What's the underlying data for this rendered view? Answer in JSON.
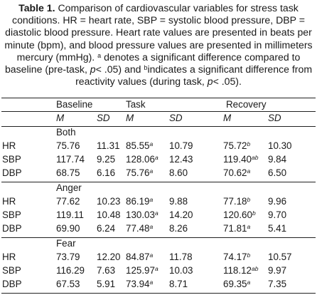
{
  "caption": {
    "table_label": "Table 1.",
    "part1": " Comparison of cardiovascular variables for stress task conditions. HR = heart rate, SBP = systolic blood pressure, DBP = diastolic blood pressure. Heart rate values are presented in beats per minute (bpm), and blood pressure values are presented in millimeters mercury (mmHg). ",
    "sup_a": "a",
    "part2": " denotes a significant difference compared to baseline (pre-task, ",
    "p1": "p",
    "part3": "< .05) and ",
    "sup_b": "b",
    "part4": "indicates a significant difference from reactivity values (during task, ",
    "p2": "p",
    "part5": "< .05)."
  },
  "table": {
    "groups": [
      "Baseline",
      "Task",
      "Recovery"
    ],
    "subheads": [
      "M",
      "SD",
      "M",
      "SD",
      "M",
      "SD"
    ],
    "sections": [
      {
        "label": "Both",
        "rows": [
          {
            "name": "HR",
            "cells": [
              {
                "v": "75.76"
              },
              {
                "v": "11.31"
              },
              {
                "v": "85.55",
                "s": "a"
              },
              {
                "v": "10.79"
              },
              {
                "v": "75.72",
                "s": "b"
              },
              {
                "v": "10.30"
              }
            ]
          },
          {
            "name": "SBP",
            "cells": [
              {
                "v": "117.74"
              },
              {
                "v": "9.25"
              },
              {
                "v": "128.06",
                "s": "a"
              },
              {
                "v": "12.43"
              },
              {
                "v": "119.40",
                "s": "ab"
              },
              {
                "v": "9.84"
              }
            ]
          },
          {
            "name": "DBP",
            "cells": [
              {
                "v": "68.75"
              },
              {
                "v": "6.16"
              },
              {
                "v": "75.76",
                "s": "a"
              },
              {
                "v": "8.60"
              },
              {
                "v": "70.62",
                "s": "a"
              },
              {
                "v": "6.50"
              }
            ]
          }
        ]
      },
      {
        "label": "Anger",
        "rows": [
          {
            "name": "HR",
            "cells": [
              {
                "v": "77.62"
              },
              {
                "v": "10.23"
              },
              {
                "v": "86.19",
                "s": "a"
              },
              {
                "v": "9.88"
              },
              {
                "v": "77.18",
                "s": "b"
              },
              {
                "v": "9.96"
              }
            ]
          },
          {
            "name": "SBP",
            "cells": [
              {
                "v": "119.11"
              },
              {
                "v": "10.48"
              },
              {
                "v": "130.03",
                "s": "a"
              },
              {
                "v": "14.20"
              },
              {
                "v": "120.60",
                "s": "b"
              },
              {
                "v": "9.70"
              }
            ]
          },
          {
            "name": "DBP",
            "cells": [
              {
                "v": "69.90"
              },
              {
                "v": "6.24"
              },
              {
                "v": "77.48",
                "s": "a"
              },
              {
                "v": "8.26"
              },
              {
                "v": "71.81",
                "s": "a"
              },
              {
                "v": "5.41"
              }
            ]
          }
        ]
      },
      {
        "label": "Fear",
        "rows": [
          {
            "name": "HR",
            "cells": [
              {
                "v": "73.79"
              },
              {
                "v": "12.20"
              },
              {
                "v": "84.87",
                "s": "a"
              },
              {
                "v": "11.78"
              },
              {
                "v": "74.17",
                "s": "b"
              },
              {
                "v": "10.57"
              }
            ]
          },
          {
            "name": "SBP",
            "cells": [
              {
                "v": "116.29"
              },
              {
                "v": "7.63"
              },
              {
                "v": "125.97",
                "s": "a"
              },
              {
                "v": "10.03"
              },
              {
                "v": "118.12",
                "s": "ab"
              },
              {
                "v": "9.97"
              }
            ]
          },
          {
            "name": "DBP",
            "cells": [
              {
                "v": "67.53"
              },
              {
                "v": "5.91"
              },
              {
                "v": "73.94",
                "s": "a"
              },
              {
                "v": "8.71"
              },
              {
                "v": "69.35",
                "s": "a"
              },
              {
                "v": "7.35"
              }
            ]
          }
        ]
      }
    ]
  }
}
